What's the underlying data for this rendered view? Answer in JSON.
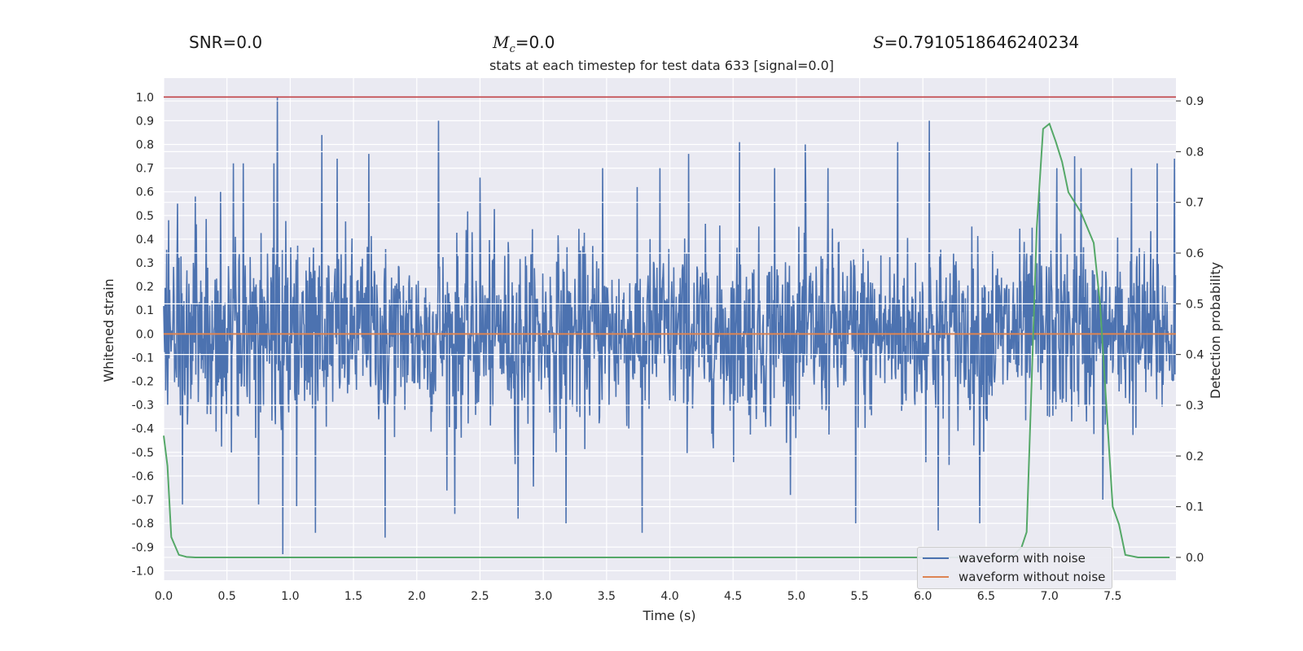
{
  "header": {
    "snr": "SNR=0.0",
    "mc_symbol": "M",
    "mc_subscript": "c",
    "mc_value": "=0.0",
    "s_symbol": "S",
    "s_value": "=0.7910518646240234"
  },
  "chart_data": {
    "type": "line",
    "title": "stats at each timestep for test data 633 [signal=0.0]",
    "xlabel": "Time (s)",
    "ylabel": "Whitened strain",
    "ylabel_right": "Detection probability",
    "xlim": [
      0.0,
      8.0
    ],
    "ylim": [
      -1.04,
      1.08
    ],
    "ylim_right": [
      -0.045,
      0.945
    ],
    "xticks": [
      "0.0",
      "0.5",
      "1.0",
      "1.5",
      "2.0",
      "2.5",
      "3.0",
      "3.5",
      "4.0",
      "4.5",
      "5.0",
      "5.5",
      "6.0",
      "6.5",
      "7.0",
      "7.5"
    ],
    "yticks": [
      "-1.0",
      "-0.9",
      "-0.8",
      "-0.7",
      "-0.6",
      "-0.5",
      "-0.4",
      "-0.3",
      "-0.2",
      "-0.1",
      "0.0",
      "0.1",
      "0.2",
      "0.3",
      "0.4",
      "0.5",
      "0.6",
      "0.7",
      "0.8",
      "0.9",
      "1.0"
    ],
    "yticks_right": [
      "0.0",
      "0.1",
      "0.2",
      "0.3",
      "0.4",
      "0.5",
      "0.6",
      "0.7",
      "0.8",
      "0.9"
    ],
    "grid": true,
    "legend_position": "lower-right",
    "series": [
      {
        "name": "waveform with noise",
        "color": "#4c72b0",
        "axis": "left",
        "samples": 2048,
        "noise_sigma": 0.19,
        "peaks": [
          [
            0.04,
            0.48
          ],
          [
            0.11,
            0.55
          ],
          [
            0.15,
            -0.72
          ],
          [
            0.25,
            0.58
          ],
          [
            0.45,
            0.6
          ],
          [
            0.55,
            0.72
          ],
          [
            0.63,
            0.72
          ],
          [
            0.75,
            -0.72
          ],
          [
            0.87,
            0.72
          ],
          [
            0.9,
            1.0
          ],
          [
            0.94,
            -0.93
          ],
          [
            1.05,
            -0.73
          ],
          [
            1.2,
            -0.84
          ],
          [
            1.25,
            0.84
          ],
          [
            1.37,
            0.74
          ],
          [
            1.62,
            0.76
          ],
          [
            1.75,
            -0.86
          ],
          [
            2.17,
            0.9
          ],
          [
            2.3,
            -0.76
          ],
          [
            2.5,
            0.66
          ],
          [
            2.8,
            -0.78
          ],
          [
            3.18,
            -0.8
          ],
          [
            3.47,
            0.7
          ],
          [
            3.78,
            -0.84
          ],
          [
            3.92,
            0.7
          ],
          [
            4.15,
            0.76
          ],
          [
            4.55,
            0.81
          ],
          [
            4.83,
            0.7
          ],
          [
            5.07,
            0.8
          ],
          [
            5.25,
            0.7
          ],
          [
            5.47,
            -0.8
          ],
          [
            5.8,
            0.81
          ],
          [
            6.05,
            0.9
          ],
          [
            6.12,
            -0.83
          ],
          [
            6.45,
            -0.8
          ],
          [
            6.92,
            0.6
          ],
          [
            7.06,
            0.7
          ],
          [
            7.2,
            0.75
          ],
          [
            7.25,
            0.7
          ],
          [
            7.42,
            -0.7
          ],
          [
            7.65,
            0.7
          ],
          [
            7.85,
            0.72
          ],
          [
            7.99,
            0.74
          ]
        ]
      },
      {
        "name": "waveform without noise",
        "color": "#dd8452",
        "axis": "left",
        "x": [
          0.0,
          8.0
        ],
        "y": [
          0.0,
          0.0
        ]
      },
      {
        "color": "#55a868",
        "axis": "right",
        "x": [
          0.0,
          0.03,
          0.06,
          0.12,
          0.18,
          0.25,
          0.4,
          1.0,
          2.0,
          3.0,
          4.0,
          5.0,
          6.0,
          6.5,
          6.7,
          6.78,
          6.82,
          6.86,
          6.9,
          6.95,
          7.0,
          7.05,
          7.1,
          7.15,
          7.25,
          7.3,
          7.35,
          7.4,
          7.45,
          7.5,
          7.55,
          7.6,
          7.7,
          7.95
        ],
        "y": [
          0.24,
          0.18,
          0.04,
          0.005,
          0.001,
          0.0,
          0.0,
          0.0,
          0.0,
          0.0,
          0.0,
          0.0,
          0.0,
          0.0,
          0.0,
          0.02,
          0.05,
          0.35,
          0.65,
          0.845,
          0.855,
          0.82,
          0.78,
          0.72,
          0.68,
          0.65,
          0.62,
          0.5,
          0.3,
          0.1,
          0.065,
          0.005,
          0.0,
          0.0
        ]
      },
      {
        "color": "#c44e52",
        "axis": "left",
        "x": [
          0.0,
          8.0
        ],
        "y": [
          1.0,
          1.0
        ]
      }
    ]
  }
}
